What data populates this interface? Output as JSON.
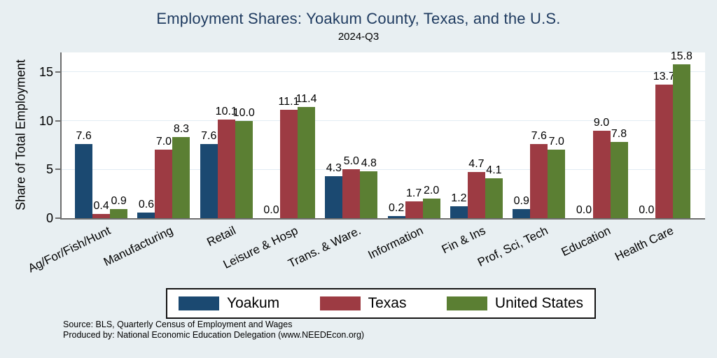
{
  "title": "Employment Shares: Yoakum County, Texas, and the U.S.",
  "subtitle": "2024-Q3",
  "ylabel": "Share of Total Employment",
  "footer": {
    "line1": "Source: BLS, Quarterly Census of Employment and Wages",
    "line2": "Produced by: National Economic Education Delegation (www.NEEDEcon.org)"
  },
  "colors": {
    "background": "#e8eff2",
    "plot_background": "#ffffff",
    "title_text": "#1e3a5f",
    "axis_line": "#6e6e6e",
    "gridline": "#e2ecf3"
  },
  "chart_data": {
    "type": "bar",
    "title": "Employment Shares: Yoakum County, Texas, and the U.S.",
    "subtitle": "2024-Q3",
    "ylabel": "Share of Total Employment",
    "xlabel": "",
    "categories": [
      "Ag/For/Fish/Hunt",
      "Manufacturing",
      "Retail",
      "Leisure & Hosp",
      "Trans. & Ware.",
      "Information",
      "Fin & Ins",
      "Prof, Sci, Tech",
      "Education",
      "Health Care"
    ],
    "series": [
      {
        "name": "Yoakum",
        "color": "#1b4971",
        "values": [
          7.6,
          0.6,
          7.6,
          0.0,
          4.3,
          0.2,
          1.2,
          0.9,
          0.0,
          0.0
        ]
      },
      {
        "name": "Texas",
        "color": "#9d3b43",
        "values": [
          0.4,
          7.0,
          10.1,
          11.1,
          5.0,
          1.7,
          4.7,
          7.6,
          9.0,
          13.7
        ]
      },
      {
        "name": "United States",
        "color": "#5b7f33",
        "values": [
          0.9,
          8.3,
          10.0,
          11.4,
          4.8,
          2.0,
          4.1,
          7.0,
          7.8,
          15.8
        ]
      }
    ],
    "yticks": [
      0,
      5,
      10,
      15
    ],
    "ylim": [
      0,
      17
    ],
    "grid": true,
    "legend_position": "bottom",
    "value_labels": true
  }
}
